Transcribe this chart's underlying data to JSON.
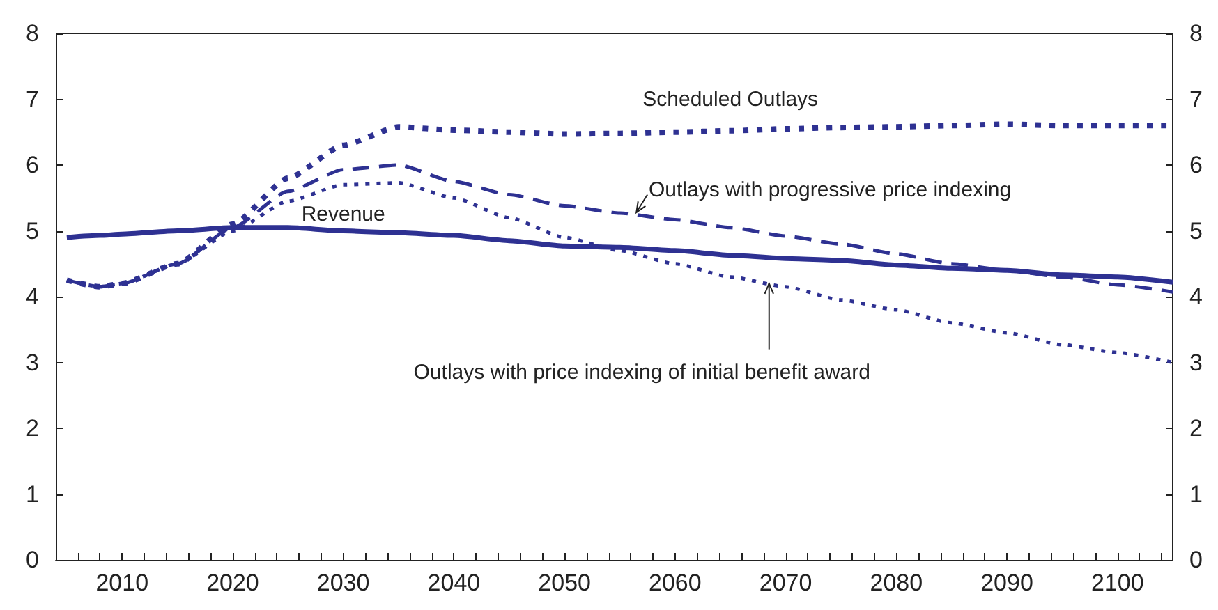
{
  "chart_data": {
    "type": "line",
    "x": [
      2005,
      2008,
      2010,
      2015,
      2020,
      2025,
      2030,
      2035,
      2040,
      2045,
      2050,
      2055,
      2060,
      2065,
      2070,
      2075,
      2080,
      2085,
      2090,
      2095,
      2100,
      2105
    ],
    "series": [
      {
        "name": "Revenue",
        "color": "#2e3192",
        "line_style": "solid",
        "values": [
          4.9,
          4.93,
          4.95,
          5.0,
          5.05,
          5.05,
          5.0,
          4.97,
          4.93,
          4.85,
          4.77,
          4.75,
          4.7,
          4.63,
          4.58,
          4.55,
          4.48,
          4.43,
          4.4,
          4.33,
          4.3,
          4.22
        ]
      },
      {
        "name": "Scheduled Outlays",
        "color": "#2e3192",
        "line_style": "dotted",
        "values": [
          4.25,
          4.15,
          4.2,
          4.5,
          5.1,
          5.8,
          6.3,
          6.58,
          6.53,
          6.5,
          6.47,
          6.48,
          6.5,
          6.52,
          6.55,
          6.57,
          6.58,
          6.6,
          6.62,
          6.6,
          6.6,
          6.6
        ]
      },
      {
        "name": "Outlays with progressive price indexing",
        "color": "#2e3192",
        "line_style": "dashed",
        "values": [
          4.25,
          4.15,
          4.2,
          4.5,
          5.05,
          5.6,
          5.93,
          6.0,
          5.75,
          5.55,
          5.38,
          5.27,
          5.17,
          5.05,
          4.92,
          4.8,
          4.65,
          4.5,
          4.4,
          4.3,
          4.18,
          4.07
        ]
      },
      {
        "name": "Outlays with price indexing of initial benefit award",
        "color": "#2e3192",
        "line_style": "dotted",
        "values": [
          4.25,
          4.15,
          4.2,
          4.5,
          5.0,
          5.45,
          5.7,
          5.73,
          5.5,
          5.2,
          4.9,
          4.7,
          4.5,
          4.3,
          4.15,
          3.95,
          3.8,
          3.6,
          3.45,
          3.27,
          3.15,
          3.0
        ]
      }
    ],
    "xlim": [
      2004,
      2105
    ],
    "xticks": [
      {
        "value": 2006,
        "label": null
      },
      {
        "value": 2008,
        "label": null
      },
      2010,
      {
        "value": 2012,
        "label": null
      },
      {
        "value": 2014,
        "label": null
      },
      {
        "value": 2016,
        "label": null
      },
      {
        "value": 2018,
        "label": null
      },
      2020,
      {
        "value": 2022,
        "label": null
      },
      {
        "value": 2024,
        "label": null
      },
      {
        "value": 2026,
        "label": null
      },
      {
        "value": 2028,
        "label": null
      },
      2030,
      {
        "value": 2032,
        "label": null
      },
      {
        "value": 2034,
        "label": null
      },
      {
        "value": 2036,
        "label": null
      },
      {
        "value": 2038,
        "label": null
      },
      2040,
      {
        "value": 2042,
        "label": null
      },
      {
        "value": 2044,
        "label": null
      },
      {
        "value": 2046,
        "label": null
      },
      {
        "value": 2048,
        "label": null
      },
      2050,
      {
        "value": 2052,
        "label": null
      },
      {
        "value": 2054,
        "label": null
      },
      {
        "value": 2056,
        "label": null
      },
      {
        "value": 2058,
        "label": null
      },
      2060,
      {
        "value": 2062,
        "label": null
      },
      {
        "value": 2064,
        "label": null
      },
      {
        "value": 2066,
        "label": null
      },
      {
        "value": 2068,
        "label": null
      },
      2070,
      {
        "value": 2072,
        "label": null
      },
      {
        "value": 2074,
        "label": null
      },
      {
        "value": 2076,
        "label": null
      },
      {
        "value": 2078,
        "label": null
      },
      2080,
      {
        "value": 2082,
        "label": null
      },
      {
        "value": 2084,
        "label": null
      },
      {
        "value": 2086,
        "label": null
      },
      {
        "value": 2088,
        "label": null
      },
      2090,
      {
        "value": 2092,
        "label": null
      },
      {
        "value": 2094,
        "label": null
      },
      {
        "value": 2096,
        "label": null
      },
      {
        "value": 2098,
        "label": null
      },
      2100,
      {
        "value": 2102,
        "label": null
      },
      {
        "value": 2104,
        "label": null
      }
    ],
    "ylim": [
      0,
      8
    ],
    "yticks": [
      0,
      1,
      2,
      3,
      4,
      5,
      6,
      7,
      8
    ],
    "y2lim": [
      0,
      8
    ],
    "y2ticks": [
      0,
      1,
      2,
      3,
      4,
      5,
      6,
      7,
      8
    ],
    "grid": false,
    "legend": false,
    "marker": "none"
  }
}
